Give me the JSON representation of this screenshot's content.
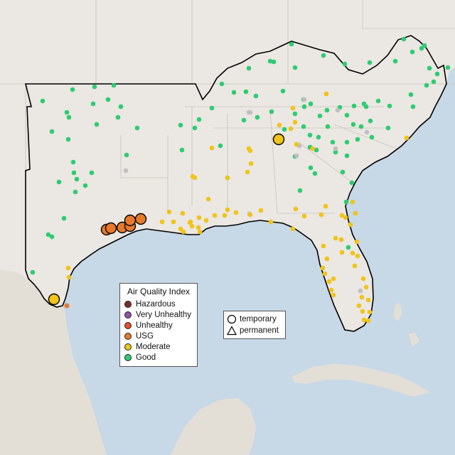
{
  "colors": {
    "hazardous": "#7e2b2b",
    "very_unhealthy": "#8f52a8",
    "unhealthy": "#e74c2c",
    "usg": "#e8792a",
    "moderate": "#f0c419",
    "good": "#2ecc71",
    "missing": "#c0c0c0",
    "land": "#ebe7e2",
    "water": "#c7d8e7"
  },
  "legend": {
    "title": "Air Quality Index",
    "items": [
      {
        "label": "Hazardous",
        "color": "#7e2b2b"
      },
      {
        "label": "Very Unhealthy",
        "color": "#8f52a8"
      },
      {
        "label": "Unhealthy",
        "color": "#e74c2c"
      },
      {
        "label": "USG",
        "color": "#e8792a"
      },
      {
        "label": "Moderate",
        "color": "#f0c419"
      },
      {
        "label": "Good",
        "color": "#2ecc71"
      }
    ]
  },
  "shape_legend": {
    "temporary": "temporary",
    "permanent": "permanent"
  }
}
